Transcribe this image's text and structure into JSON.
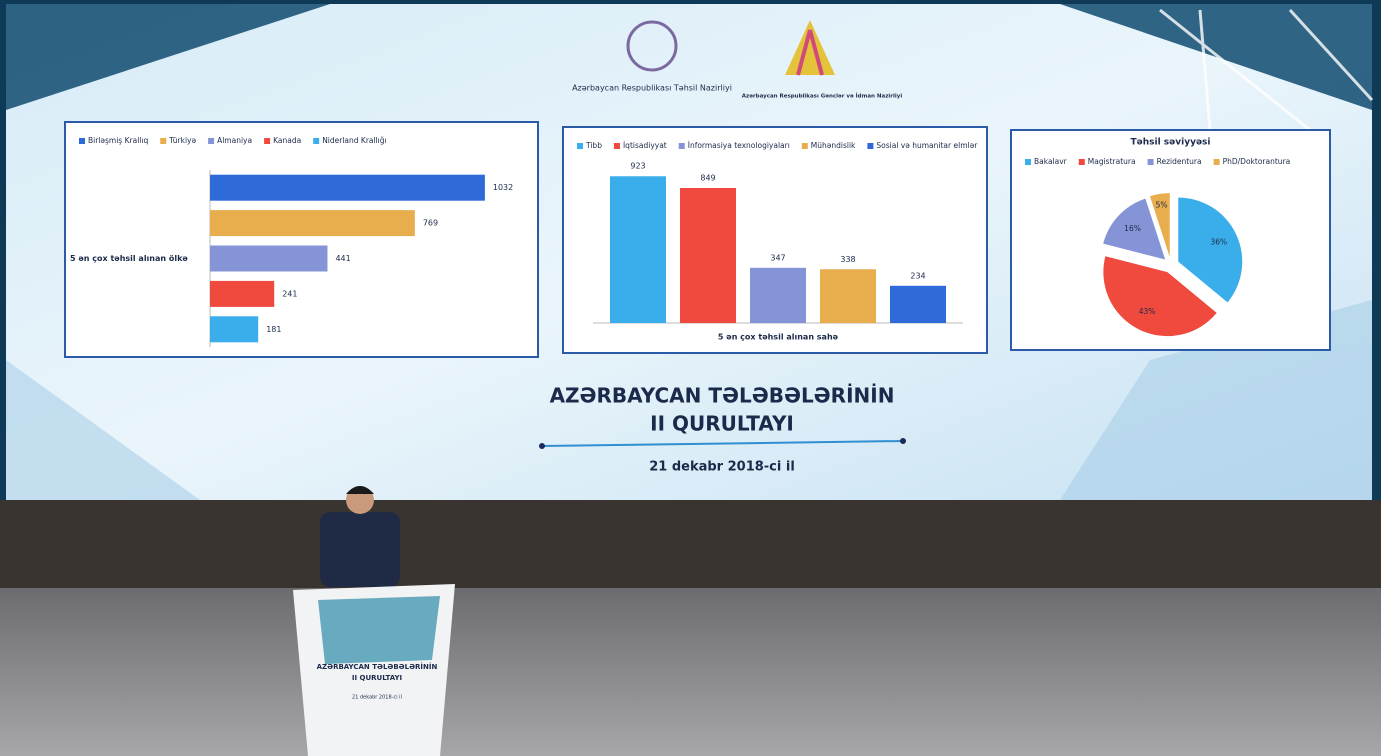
{
  "logos": {
    "left": "Azərbaycan Respublikası Təhsil Nazirliyi",
    "right": "Azərbaycan Respublikası Gənclər və İdman Nazirliyi"
  },
  "event": {
    "title_line1": "AZƏRBAYCAN TƏLƏBƏLƏRİNİN",
    "title_line2": "II QURULTAYI",
    "date": "21 dekabr 2018-ci il"
  },
  "chart_data": [
    {
      "type": "bar",
      "horizontal": true,
      "ylabel": "5 ən çox təhsil alınan ölkə",
      "xlim": [
        0,
        1100
      ],
      "series": [
        {
          "name": "Birləşmiş Krallıq",
          "color": "#2f6bd8",
          "values": [
            1032
          ]
        },
        {
          "name": "Türkiyə",
          "color": "#e8ad4c",
          "values": [
            769
          ]
        },
        {
          "name": "Almaniya",
          "color": "#8594d6",
          "values": [
            441
          ]
        },
        {
          "name": "Kanada",
          "color": "#f0493d",
          "values": [
            241
          ]
        },
        {
          "name": "Niderland Krallığı",
          "color": "#3aaeea",
          "values": [
            181
          ]
        }
      ]
    },
    {
      "type": "bar",
      "horizontal": false,
      "xlabel": "5 ən çox təhsil alınan sahə",
      "ylim": [
        0,
        1000
      ],
      "series": [
        {
          "name": "Tibb",
          "color": "#3aaeea",
          "values": [
            923
          ]
        },
        {
          "name": "İqtisadiyyat",
          "color": "#f0493d",
          "values": [
            849
          ]
        },
        {
          "name": "İnformasiya texnologiyaları",
          "color": "#8594d6",
          "values": [
            347
          ]
        },
        {
          "name": "Mühəndislik",
          "color": "#e8ad4c",
          "values": [
            338
          ]
        },
        {
          "name": "Sosial və humanitar elmlər",
          "color": "#2f6bd8",
          "values": [
            234
          ]
        }
      ]
    },
    {
      "type": "pie",
      "title": "Təhsil səviyyəsi",
      "categories": [
        "Bakalavr",
        "Magistratura",
        "Rezidentura",
        "PhD/Doktorantura"
      ],
      "values": [
        36,
        43,
        16,
        5
      ],
      "value_labels": [
        "36%",
        "43%",
        "16%",
        "5%"
      ],
      "colors": [
        "#3aaeea",
        "#f0493d",
        "#8594d6",
        "#e8ad4c"
      ]
    }
  ]
}
